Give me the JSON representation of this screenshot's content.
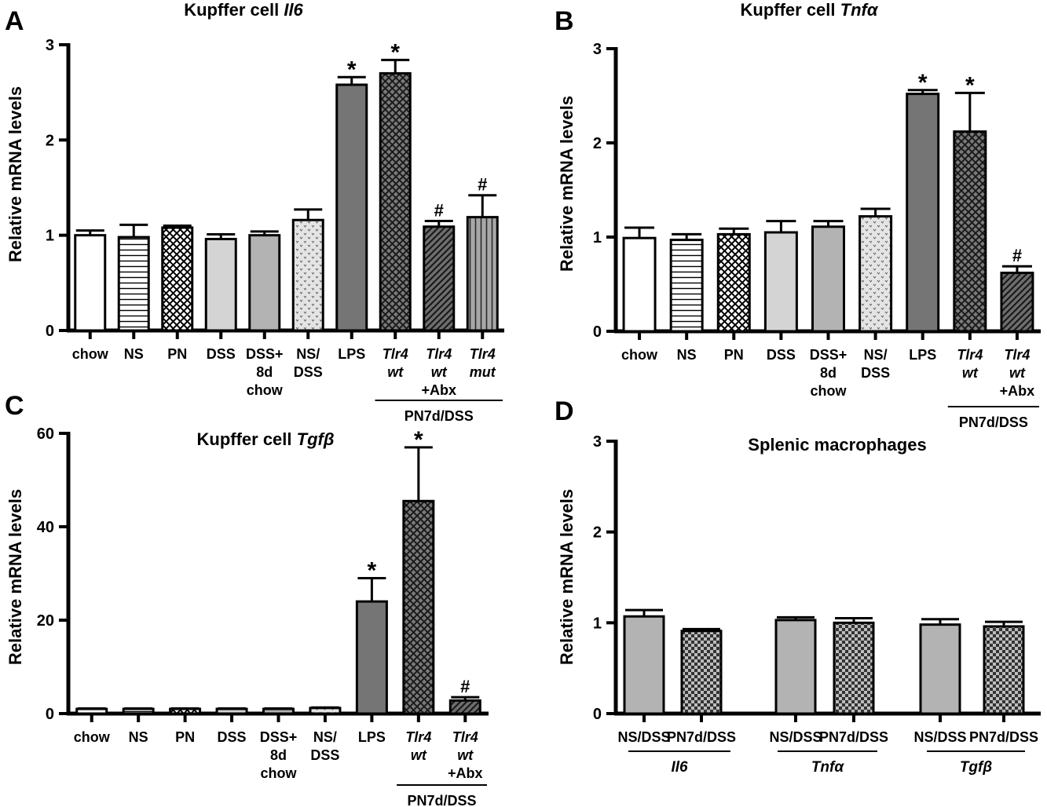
{
  "colors": {
    "white": "#ffffff",
    "light_gray": "#d4d4d4",
    "mid_gray": "#b3b3b3",
    "dark_gray": "#757575",
    "darker_gray": "#555555",
    "check_dark": "#333333",
    "check_light": "#bdbdbd"
  },
  "chart_data": [
    {
      "panel": "A",
      "type": "bar",
      "title_prefix": "Kupffer cell ",
      "title_gene": "Il6",
      "ylabel": "Relative mRNA levels",
      "ylim": [
        0,
        3
      ],
      "yticks": [
        "0",
        "1",
        "2",
        "3"
      ],
      "categories": [
        {
          "lines": [
            "chow"
          ],
          "italic": false
        },
        {
          "lines": [
            "NS"
          ],
          "italic": false
        },
        {
          "lines": [
            "PN"
          ],
          "italic": false
        },
        {
          "lines": [
            "DSS"
          ],
          "italic": false
        },
        {
          "lines": [
            "DSS+",
            "8d",
            "chow"
          ],
          "italic": false
        },
        {
          "lines": [
            "NS/",
            "DSS"
          ],
          "italic": false
        },
        {
          "lines": [
            "LPS"
          ],
          "italic": false
        },
        {
          "lines": [
            "Tlr4",
            "wt"
          ],
          "italic": true
        },
        {
          "lines": [
            "Tlr4",
            "wt",
            "+Abx"
          ],
          "italic": true
        },
        {
          "lines": [
            "Tlr4",
            "mut"
          ],
          "italic": true
        }
      ],
      "values": [
        1.0,
        0.98,
        1.08,
        0.96,
        1.0,
        1.16,
        2.58,
        2.7,
        1.09,
        1.19
      ],
      "errors": [
        0.05,
        0.13,
        0.02,
        0.05,
        0.04,
        0.11,
        0.08,
        0.14,
        0.06,
        0.23
      ],
      "fills": [
        "white",
        "hlines",
        "crosshatch",
        "light",
        "mid",
        "dots",
        "dark",
        "crossdark",
        "diag",
        "vlines"
      ],
      "annotations": [
        "",
        "",
        "",
        "",
        "",
        "",
        "*",
        "*",
        "#",
        "#"
      ],
      "group_label": "PN7d/DSS"
    },
    {
      "panel": "B",
      "type": "bar",
      "title_prefix": "Kupffer cell ",
      "title_gene": "Tnfα",
      "ylabel": "Relative mRNA levels",
      "ylim": [
        0,
        3
      ],
      "yticks": [
        "0",
        "1",
        "2",
        "3"
      ],
      "categories": [
        {
          "lines": [
            "chow"
          ],
          "italic": false
        },
        {
          "lines": [
            "NS"
          ],
          "italic": false
        },
        {
          "lines": [
            "PN"
          ],
          "italic": false
        },
        {
          "lines": [
            "DSS"
          ],
          "italic": false
        },
        {
          "lines": [
            "DSS+",
            "8d",
            "chow"
          ],
          "italic": false
        },
        {
          "lines": [
            "NS/",
            "DSS"
          ],
          "italic": false
        },
        {
          "lines": [
            "LPS"
          ],
          "italic": false
        },
        {
          "lines": [
            "Tlr4",
            "wt"
          ],
          "italic": true
        },
        {
          "lines": [
            "Tlr4",
            "wt",
            "+Abx"
          ],
          "italic": true
        }
      ],
      "values": [
        0.99,
        0.97,
        1.03,
        1.05,
        1.11,
        1.22,
        2.52,
        2.12,
        0.62
      ],
      "errors": [
        0.11,
        0.06,
        0.06,
        0.12,
        0.06,
        0.08,
        0.04,
        0.41,
        0.07
      ],
      "fills": [
        "white",
        "hlines",
        "crosshatch",
        "light",
        "mid",
        "dots",
        "dark",
        "crossdark",
        "diag"
      ],
      "annotations": [
        "",
        "",
        "",
        "",
        "",
        "",
        "*",
        "*",
        "#"
      ],
      "group_label": "PN7d/DSS"
    },
    {
      "panel": "C",
      "type": "bar",
      "title_prefix": "Kupffer cell ",
      "title_gene": "Tgfβ",
      "ylabel": "Relative mRNA levels",
      "ylim": [
        0,
        60
      ],
      "yticks": [
        "0",
        "20",
        "40",
        "60"
      ],
      "categories": [
        {
          "lines": [
            "chow"
          ],
          "italic": false
        },
        {
          "lines": [
            "NS"
          ],
          "italic": false
        },
        {
          "lines": [
            "PN"
          ],
          "italic": false
        },
        {
          "lines": [
            "DSS"
          ],
          "italic": false
        },
        {
          "lines": [
            "DSS+",
            "8d",
            "chow"
          ],
          "italic": false
        },
        {
          "lines": [
            "NS/",
            "DSS"
          ],
          "italic": false
        },
        {
          "lines": [
            "LPS"
          ],
          "italic": false
        },
        {
          "lines": [
            "Tlr4",
            "wt"
          ],
          "italic": true
        },
        {
          "lines": [
            "Tlr4",
            "wt",
            "+Abx"
          ],
          "italic": true
        }
      ],
      "values": [
        1.0,
        1.0,
        1.0,
        1.0,
        1.0,
        1.2,
        24.0,
        45.5,
        2.8
      ],
      "errors": [
        0.1,
        0.1,
        0.1,
        0.1,
        0.1,
        0.1,
        5.0,
        11.5,
        0.7
      ],
      "fills": [
        "white",
        "hlines",
        "crosshatch",
        "light",
        "mid",
        "dots",
        "dark",
        "crossdark",
        "diag"
      ],
      "annotations": [
        "",
        "",
        "",
        "",
        "",
        "",
        "*",
        "*",
        "#"
      ],
      "group_label": "PN7d/DSS"
    },
    {
      "panel": "D",
      "type": "bar",
      "title": "Splenic macrophages",
      "ylabel": "Relative mRNA levels",
      "ylim": [
        0,
        3
      ],
      "yticks": [
        "0",
        "1",
        "2",
        "3"
      ],
      "groups": [
        "Il6",
        "Tnfα",
        "Tgfβ"
      ],
      "categories": [
        "NS/DSS",
        "PN7d/DSS",
        "NS/DSS",
        "PN7d/DSS",
        "NS/DSS",
        "PN7d/DSS"
      ],
      "values": [
        1.07,
        0.91,
        1.03,
        1.0,
        0.98,
        0.96
      ],
      "errors": [
        0.07,
        0.02,
        0.03,
        0.05,
        0.06,
        0.05
      ],
      "fills": [
        "mid",
        "checker",
        "mid",
        "checker",
        "mid",
        "checker"
      ]
    }
  ]
}
